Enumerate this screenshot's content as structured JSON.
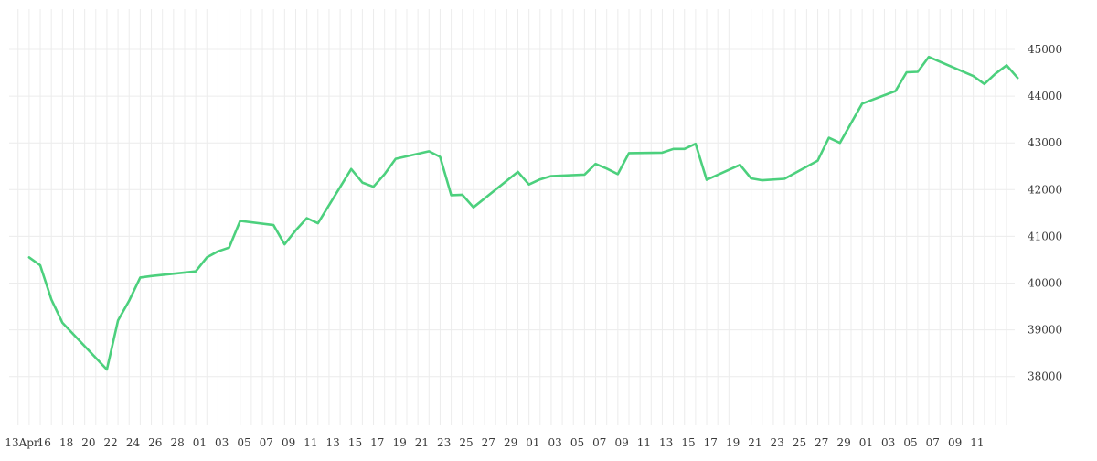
{
  "chart_data": {
    "type": "line",
    "title": "",
    "xlabel": "",
    "ylabel": "",
    "x_tick_labels": [
      "13Apr",
      "16",
      "18",
      "20",
      "22",
      "24",
      "26",
      "28",
      "01",
      "03",
      "05",
      "07",
      "09",
      "11",
      "13",
      "15",
      "17",
      "19",
      "21",
      "23",
      "25",
      "27",
      "29",
      "01",
      "03",
      "05",
      "07",
      "09",
      "11",
      "13",
      "15",
      "17",
      "19",
      "21",
      "23",
      "25",
      "27",
      "29",
      "01",
      "03",
      "05",
      "07",
      "09",
      "11"
    ],
    "y_ticks": [
      38000,
      39000,
      40000,
      41000,
      42000,
      43000,
      44000,
      45000
    ],
    "y_tick_labels": [
      "38000",
      "39000",
      "40000",
      "41000",
      "42000",
      "43000",
      "44000",
      "45000"
    ],
    "ylim": [
      37000,
      46000
    ],
    "grid": true,
    "line_color": "#4cd07d",
    "grid_color": "#ececec",
    "series": [
      {
        "x": [
          "2020-04-14",
          "2020-04-15",
          "2020-04-16",
          "2020-04-17",
          "2020-04-21",
          "2020-04-22",
          "2020-04-23",
          "2020-04-24",
          "2020-04-25",
          "2020-04-29",
          "2020-04-30",
          "2020-05-01",
          "2020-05-02",
          "2020-05-03",
          "2020-05-06",
          "2020-05-07",
          "2020-05-08",
          "2020-05-09",
          "2020-05-10",
          "2020-05-13",
          "2020-05-14",
          "2020-05-15",
          "2020-05-16",
          "2020-05-17",
          "2020-05-20",
          "2020-05-21",
          "2020-05-22",
          "2020-05-23",
          "2020-05-24",
          "2020-05-28",
          "2020-05-29",
          "2020-05-30",
          "2020-05-31",
          "2020-06-03",
          "2020-06-04",
          "2020-06-05",
          "2020-06-06",
          "2020-06-07",
          "2020-06-10",
          "2020-06-11",
          "2020-06-12",
          "2020-06-13",
          "2020-06-14",
          "2020-06-17",
          "2020-06-18",
          "2020-06-19",
          "2020-06-21",
          "2020-06-24",
          "2020-06-25",
          "2020-06-26",
          "2020-06-28",
          "2020-07-01",
          "2020-07-02",
          "2020-07-03",
          "2020-07-04",
          "2020-07-08",
          "2020-07-09",
          "2020-07-10",
          "2020-07-11",
          "2020-07-12"
        ],
        "values": [
          40550,
          40380,
          39650,
          39150,
          38150,
          39200,
          39620,
          40120,
          40150,
          40250,
          40550,
          40680,
          40760,
          41330,
          41240,
          40830,
          41130,
          41390,
          41280,
          42440,
          42150,
          42060,
          42330,
          42660,
          42820,
          42700,
          41880,
          41890,
          41620,
          42380,
          42110,
          42220,
          42290,
          42320,
          42550,
          42450,
          42330,
          42780,
          42790,
          42870,
          42870,
          42980,
          42210,
          42530,
          42240,
          42200,
          42230,
          42620,
          43110,
          43000,
          43840,
          44110,
          44510,
          44520,
          44840,
          44430,
          44260,
          44480,
          44660,
          44390
        ]
      }
    ]
  }
}
